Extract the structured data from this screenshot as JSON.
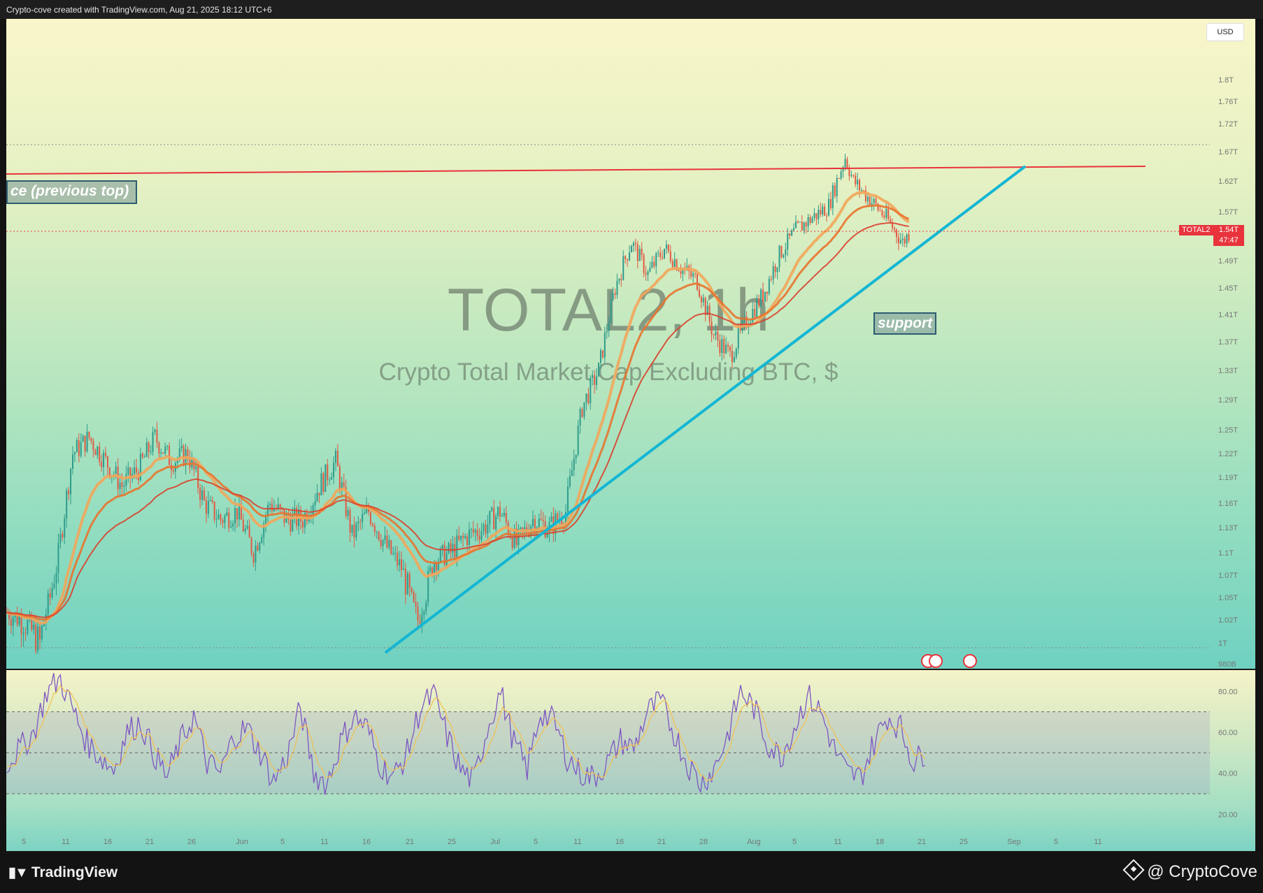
{
  "header": {
    "attribution": "Crypto-cove created with TradingView.com, Aug 21, 2025 18:12 UTC+6"
  },
  "chart": {
    "symbol": "TOTAL2, 1h",
    "description": "Crypto Total Market Cap Excluding BTC, $",
    "currency": "USD",
    "price_tag": {
      "symbol": "TOTAL2",
      "price": "1.54T",
      "countdown": "47:47"
    },
    "annotations": {
      "resistance": "ce (previous top)",
      "support": "support"
    },
    "colors": {
      "resistance_line": "#e8333c",
      "support_line": "#13b6d4",
      "candle_up": "#2e9b8b",
      "candle_down": "#e05a44",
      "ema_ribbon": "#e8742f",
      "rsi_line": "#7e57c2",
      "rsi_ma": "#f2c14e"
    }
  },
  "chart_data": [
    {
      "type": "line",
      "title": "TOTAL2, 1h",
      "subtitle": "Crypto Total Market Cap Excluding BTC, $",
      "y_axis_labels": [
        "1.8T",
        "1.76T",
        "1.72T",
        "1.67T",
        "1.62T",
        "1.57T",
        "1.49T",
        "1.45T",
        "1.41T",
        "1.37T",
        "1.33T",
        "1.29T",
        "1.25T",
        "1.22T",
        "1.19T",
        "1.16T",
        "1.13T",
        "1.1T",
        "1.07T",
        "1.05T",
        "1.02T",
        "1T",
        "980B"
      ],
      "x_axis_labels": [
        "5",
        "11",
        "16",
        "21",
        "26",
        "Jun",
        "5",
        "11",
        "16",
        "21",
        "25",
        "Jul",
        "5",
        "11",
        "16",
        "21",
        "28",
        "Aug",
        "5",
        "11",
        "18",
        "21",
        "25",
        "Sep",
        "5",
        "11"
      ],
      "series": [
        {
          "x": [
            "May 3",
            "May 5",
            "May 7",
            "May 9",
            "May 11",
            "May 13",
            "May 15",
            "May 17",
            "May 19",
            "May 21",
            "May 23",
            "May 25",
            "May 27",
            "May 29",
            "May 31",
            "Jun 2",
            "Jun 4",
            "Jun 6",
            "Jun 8",
            "Jun 10",
            "Jun 12",
            "Jun 14",
            "Jun 16",
            "Jun 18",
            "Jun 20",
            "Jun 22",
            "Jun 24",
            "Jun 26",
            "Jun 28",
            "Jun 30",
            "Jul 2",
            "Jul 4",
            "Jul 6",
            "Jul 8",
            "Jul 10",
            "Jul 12",
            "Jul 14",
            "Jul 16",
            "Jul 18",
            "Jul 20",
            "Jul 22",
            "Jul 24",
            "Jul 26",
            "Jul 28",
            "Jul 30",
            "Aug 1",
            "Aug 3",
            "Aug 5",
            "Aug 7",
            "Aug 9",
            "Aug 11",
            "Aug 13",
            "Aug 14",
            "Aug 16",
            "Aug 18",
            "Aug 20",
            "Aug 21"
          ],
          "values": [
            1.03,
            1.02,
            1.0,
            1.08,
            1.22,
            1.24,
            1.21,
            1.18,
            1.2,
            1.24,
            1.21,
            1.22,
            1.16,
            1.14,
            1.15,
            1.1,
            1.16,
            1.14,
            1.14,
            1.18,
            1.21,
            1.12,
            1.15,
            1.11,
            1.08,
            1.02,
            1.09,
            1.1,
            1.12,
            1.13,
            1.15,
            1.11,
            1.14,
            1.13,
            1.15,
            1.28,
            1.33,
            1.45,
            1.52,
            1.47,
            1.51,
            1.48,
            1.46,
            1.38,
            1.35,
            1.4,
            1.44,
            1.5,
            1.54,
            1.56,
            1.58,
            1.66,
            1.62,
            1.59,
            1.56,
            1.52,
            1.54
          ]
        }
      ],
      "resistance_level": 1.64,
      "support_trendline": [
        {
          "x": "Jun 18",
          "y": 0.98
        },
        {
          "x": "Sep 1",
          "y": 1.64
        }
      ],
      "current_price": 1.54
    },
    {
      "type": "line",
      "y_axis_labels": [
        "80.00",
        "60.00",
        "40.00",
        "20.00"
      ],
      "levels": {
        "overbought": 70,
        "middle": 50,
        "oversold": 30
      },
      "ylim": [
        15,
        90
      ],
      "series": [
        {
          "values": [
            45,
            52,
            60,
            80,
            86,
            70,
            55,
            48,
            42,
            60,
            65,
            50,
            38,
            55,
            68,
            45,
            40,
            58,
            62,
            50,
            36,
            48,
            72,
            40,
            35,
            55,
            68,
            62,
            44,
            38,
            50,
            72,
            78,
            58,
            42,
            36,
            62,
            80,
            55,
            42,
            70,
            65,
            48,
            40,
            38,
            45,
            56,
            52,
            70,
            75,
            60,
            45,
            35,
            42,
            58,
            80,
            72,
            55,
            48,
            62,
            78,
            70,
            52,
            40,
            38,
            55,
            68,
            62,
            45,
            52
          ]
        }
      ]
    }
  ]
}
